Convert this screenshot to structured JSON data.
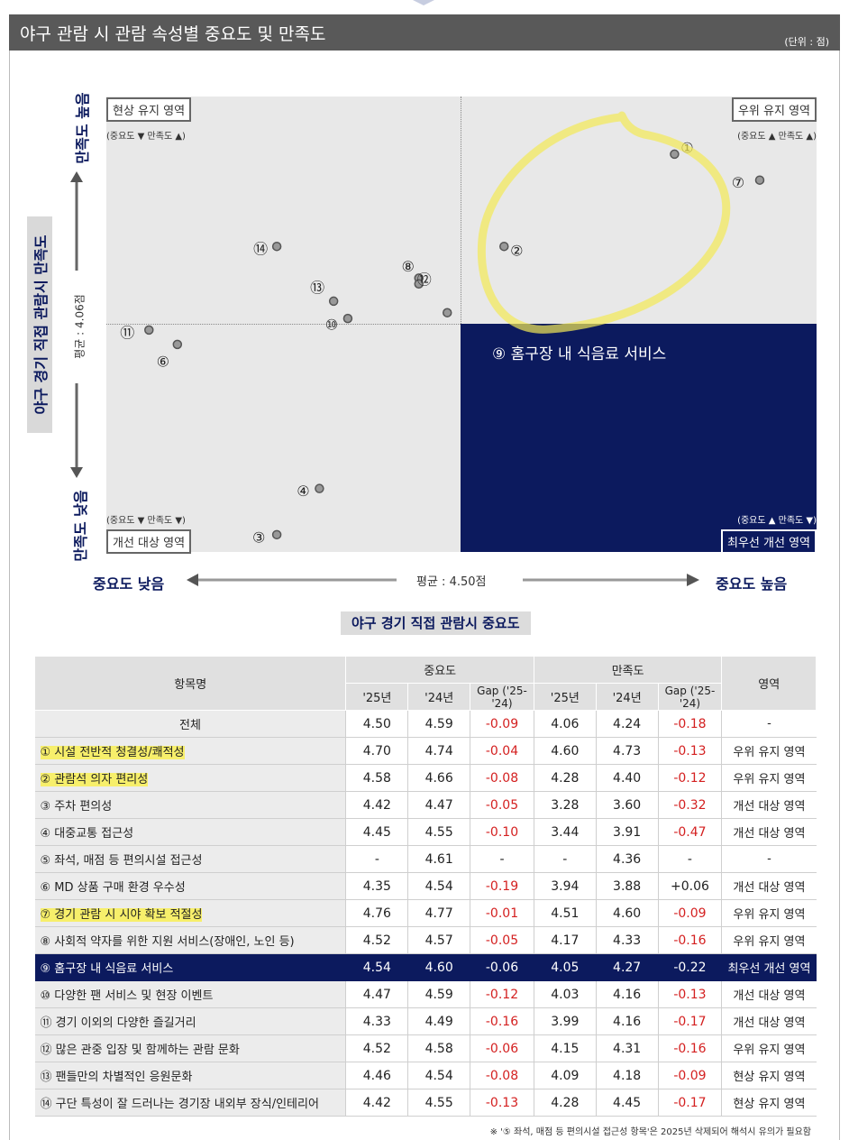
{
  "title": "야구 관람 시 관람 속성별 중요도 및 만족도",
  "unit": "(단위 : 점)",
  "chart_data": {
    "type": "scatter",
    "xlabel": "야구 경기 직접 관람시 중요도",
    "ylabel": "야구 경기 직접 관람시 만족도",
    "x_low_label": "중요도 낮음",
    "x_high_label": "중요도 높음",
    "y_high_label": "만족도 높음",
    "y_low_label": "만족도 낮음",
    "x_avg_label": "평균 : 4.50점",
    "y_avg_label": "평균 : 4.06점",
    "x_avg": 4.5,
    "y_avg": 4.06,
    "xlim": [
      4.3,
      4.8
    ],
    "ylim": [
      3.22,
      4.8
    ],
    "quadrants": [
      {
        "name": "현상 유지 영역",
        "sub": "(중요도 ▼ 만족도 ▲)",
        "position": "top-left"
      },
      {
        "name": "우위 유지 영역",
        "sub": "(중요도 ▲ 만족도 ▲)",
        "position": "top-right"
      },
      {
        "name": "개선 대상 영역",
        "sub": "(중요도 ▼ 만족도 ▼)",
        "position": "bottom-left"
      },
      {
        "name": "최우선 개선 영역",
        "sub": "(중요도 ▲ 만족도 ▼)",
        "position": "bottom-right"
      }
    ],
    "highlight_label": "⑨ 홈구장 내 식음료 서비스",
    "points": [
      {
        "label": "①",
        "x": 4.7,
        "y": 4.6
      },
      {
        "label": "②",
        "x": 4.58,
        "y": 4.28
      },
      {
        "label": "③",
        "x": 4.42,
        "y": 3.28
      },
      {
        "label": "④",
        "x": 4.45,
        "y": 3.44
      },
      {
        "label": "⑥",
        "x": 4.35,
        "y": 3.94
      },
      {
        "label": "⑦",
        "x": 4.76,
        "y": 4.51
      },
      {
        "label": "⑧",
        "x": 4.52,
        "y": 4.17
      },
      {
        "label": "⑨",
        "x": 4.54,
        "y": 4.05
      },
      {
        "label": "⑩",
        "x": 4.47,
        "y": 4.03
      },
      {
        "label": "⑪",
        "x": 4.33,
        "y": 3.99
      },
      {
        "label": "⑫",
        "x": 4.52,
        "y": 4.15
      },
      {
        "label": "⑬",
        "x": 4.46,
        "y": 4.09
      },
      {
        "label": "⑭",
        "x": 4.42,
        "y": 4.28
      }
    ]
  },
  "table": {
    "col_name": "항목명",
    "col_importance": "중요도",
    "col_satisfaction": "만족도",
    "col_zone": "영역",
    "sub_25": "'25년",
    "sub_24": "'24년",
    "sub_gap": "Gap ('25-'24)",
    "rows": [
      {
        "name": "전체",
        "i25": "4.50",
        "i24": "4.59",
        "ig": "-0.09",
        "s25": "4.06",
        "s24": "4.24",
        "sg": "-0.18",
        "zone": "-"
      },
      {
        "name": "① 시설 전반적 청결성/쾌적성",
        "i25": "4.70",
        "i24": "4.74",
        "ig": "-0.04",
        "s25": "4.60",
        "s24": "4.73",
        "sg": "-0.13",
        "zone": "우위 유지 영역"
      },
      {
        "name": "② 관람석 의자 편리성",
        "i25": "4.58",
        "i24": "4.66",
        "ig": "-0.08",
        "s25": "4.28",
        "s24": "4.40",
        "sg": "-0.12",
        "zone": "우위 유지 영역"
      },
      {
        "name": "③ 주차 편의성",
        "i25": "4.42",
        "i24": "4.47",
        "ig": "-0.05",
        "s25": "3.28",
        "s24": "3.60",
        "sg": "-0.32",
        "zone": "개선 대상 영역"
      },
      {
        "name": "④ 대중교통 접근성",
        "i25": "4.45",
        "i24": "4.55",
        "ig": "-0.10",
        "s25": "3.44",
        "s24": "3.91",
        "sg": "-0.47",
        "zone": "개선 대상 영역"
      },
      {
        "name": "⑤ 좌석, 매점 등 편의시설 접근성",
        "i25": "-",
        "i24": "4.61",
        "ig": "-",
        "s25": "-",
        "s24": "4.36",
        "sg": "-",
        "zone": "-"
      },
      {
        "name": "⑥ MD 상품 구매 환경 우수성",
        "i25": "4.35",
        "i24": "4.54",
        "ig": "-0.19",
        "s25": "3.94",
        "s24": "3.88",
        "sg": "+0.06",
        "zone": "개선 대상 영역"
      },
      {
        "name": "⑦ 경기 관람 시 시야 확보 적절성",
        "i25": "4.76",
        "i24": "4.77",
        "ig": "-0.01",
        "s25": "4.51",
        "s24": "4.60",
        "sg": "-0.09",
        "zone": "우위 유지 영역"
      },
      {
        "name": "⑧ 사회적 약자를 위한 지원 서비스(장애인, 노인 등)",
        "i25": "4.52",
        "i24": "4.57",
        "ig": "-0.05",
        "s25": "4.17",
        "s24": "4.33",
        "sg": "-0.16",
        "zone": "우위 유지 영역"
      },
      {
        "name": "⑨ 홈구장 내 식음료 서비스",
        "i25": "4.54",
        "i24": "4.60",
        "ig": "-0.06",
        "s25": "4.05",
        "s24": "4.27",
        "sg": "-0.22",
        "zone": "최우선 개선 영역"
      },
      {
        "name": "⑩ 다양한 팬 서비스 및 현장 이벤트",
        "i25": "4.47",
        "i24": "4.59",
        "ig": "-0.12",
        "s25": "4.03",
        "s24": "4.16",
        "sg": "-0.13",
        "zone": "개선 대상 영역"
      },
      {
        "name": "⑪ 경기 이외의 다양한 즐길거리",
        "i25": "4.33",
        "i24": "4.49",
        "ig": "-0.16",
        "s25": "3.99",
        "s24": "4.16",
        "sg": "-0.17",
        "zone": "개선 대상 영역"
      },
      {
        "name": "⑫ 많은 관중 입장 및 함께하는 관람 문화",
        "i25": "4.52",
        "i24": "4.58",
        "ig": "-0.06",
        "s25": "4.15",
        "s24": "4.31",
        "sg": "-0.16",
        "zone": "우위 유지 영역"
      },
      {
        "name": "⑬ 팬들만의 차별적인 응원문화",
        "i25": "4.46",
        "i24": "4.54",
        "ig": "-0.08",
        "s25": "4.09",
        "s24": "4.18",
        "sg": "-0.09",
        "zone": "현상 유지 영역"
      },
      {
        "name": "⑭ 구단 특성이 잘 드러나는 경기장 내외부 장식/인테리어",
        "i25": "4.42",
        "i24": "4.55",
        "ig": "-0.13",
        "s25": "4.28",
        "s24": "4.45",
        "sg": "-0.17",
        "zone": "현상 유지 영역"
      }
    ]
  },
  "footnote": "※ '⑤ 좌석, 매점 등 편의시설 접근성 항목'은 2025년 삭제되어 해석시 유의가 필요함",
  "colors": {
    "navy": "#0c1a5e",
    "negative": "#d42020",
    "highlighter": "#f7ef6b"
  }
}
